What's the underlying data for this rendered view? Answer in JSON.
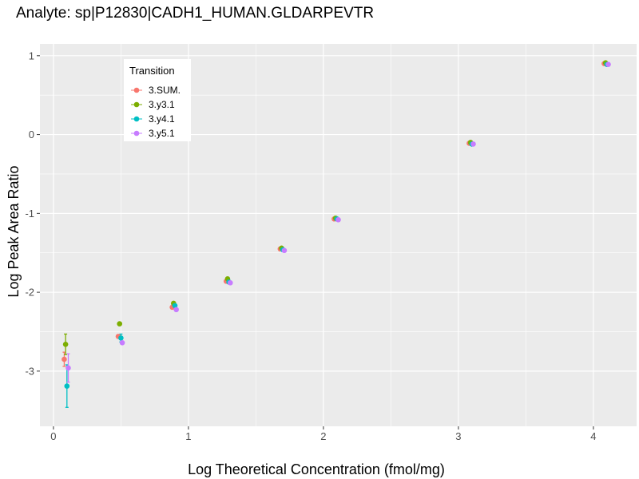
{
  "chart_data": {
    "type": "scatter",
    "title": "Analyte: sp|P12830|CADH1_HUMAN.GLDARPEVTR",
    "xlabel": "Log Theoretical Concentration (fmol/mg)",
    "ylabel": "Log Peak Area Ratio",
    "xlim": [
      -0.1,
      4.32
    ],
    "ylim": [
      -3.7,
      1.15
    ],
    "x_ticks": [
      0,
      1,
      2,
      3,
      4
    ],
    "x_tick_labels": [
      "0",
      "1",
      "2",
      "3",
      "4"
    ],
    "y_ticks": [
      1,
      0,
      -1,
      -2,
      -3
    ],
    "y_tick_labels": [
      "1",
      "0",
      "-1",
      "-2",
      "-3"
    ],
    "grid": true,
    "legend": {
      "title": "Transition",
      "position": "top-left"
    },
    "series": [
      {
        "name": "3.SUM.",
        "color": "#F8766D",
        "points": [
          {
            "x": 0.08,
            "y": -2.85,
            "err": 0.09
          },
          {
            "x": 0.48,
            "y": -2.56
          },
          {
            "x": 0.88,
            "y": -2.19
          },
          {
            "x": 1.28,
            "y": -1.86
          },
          {
            "x": 1.68,
            "y": -1.45
          },
          {
            "x": 2.08,
            "y": -1.07
          },
          {
            "x": 3.08,
            "y": -0.11
          },
          {
            "x": 4.08,
            "y": 0.9
          }
        ]
      },
      {
        "name": "3.y3.1",
        "color": "#7CAE00",
        "points": [
          {
            "x": 0.09,
            "y": -2.66,
            "err": 0.13
          },
          {
            "x": 0.49,
            "y": -2.4
          },
          {
            "x": 0.89,
            "y": -2.14
          },
          {
            "x": 1.29,
            "y": -1.83
          },
          {
            "x": 1.69,
            "y": -1.44
          },
          {
            "x": 2.09,
            "y": -1.06
          },
          {
            "x": 3.09,
            "y": -0.1
          },
          {
            "x": 4.09,
            "y": 0.91
          }
        ]
      },
      {
        "name": "3.y4.1",
        "color": "#00BFC4",
        "points": [
          {
            "x": 0.1,
            "y": -3.19,
            "err": 0.27
          },
          {
            "x": 0.5,
            "y": -2.58,
            "err": 0.05
          },
          {
            "x": 0.9,
            "y": -2.17
          },
          {
            "x": 1.3,
            "y": -1.87
          },
          {
            "x": 1.7,
            "y": -1.46
          },
          {
            "x": 2.1,
            "y": -1.07
          },
          {
            "x": 3.1,
            "y": -0.12
          },
          {
            "x": 4.1,
            "y": 0.89
          }
        ]
      },
      {
        "name": "3.y5.1",
        "color": "#C77CFF",
        "points": [
          {
            "x": 0.11,
            "y": -2.96,
            "err": 0.18
          },
          {
            "x": 0.51,
            "y": -2.64
          },
          {
            "x": 0.91,
            "y": -2.22
          },
          {
            "x": 1.31,
            "y": -1.88
          },
          {
            "x": 1.71,
            "y": -1.47
          },
          {
            "x": 2.11,
            "y": -1.08
          },
          {
            "x": 3.11,
            "y": -0.12
          },
          {
            "x": 4.11,
            "y": 0.89
          }
        ]
      }
    ],
    "colors": {
      "panel_bg": "#EBEBEB",
      "grid": "#FFFFFF",
      "tick": "#333333"
    }
  }
}
